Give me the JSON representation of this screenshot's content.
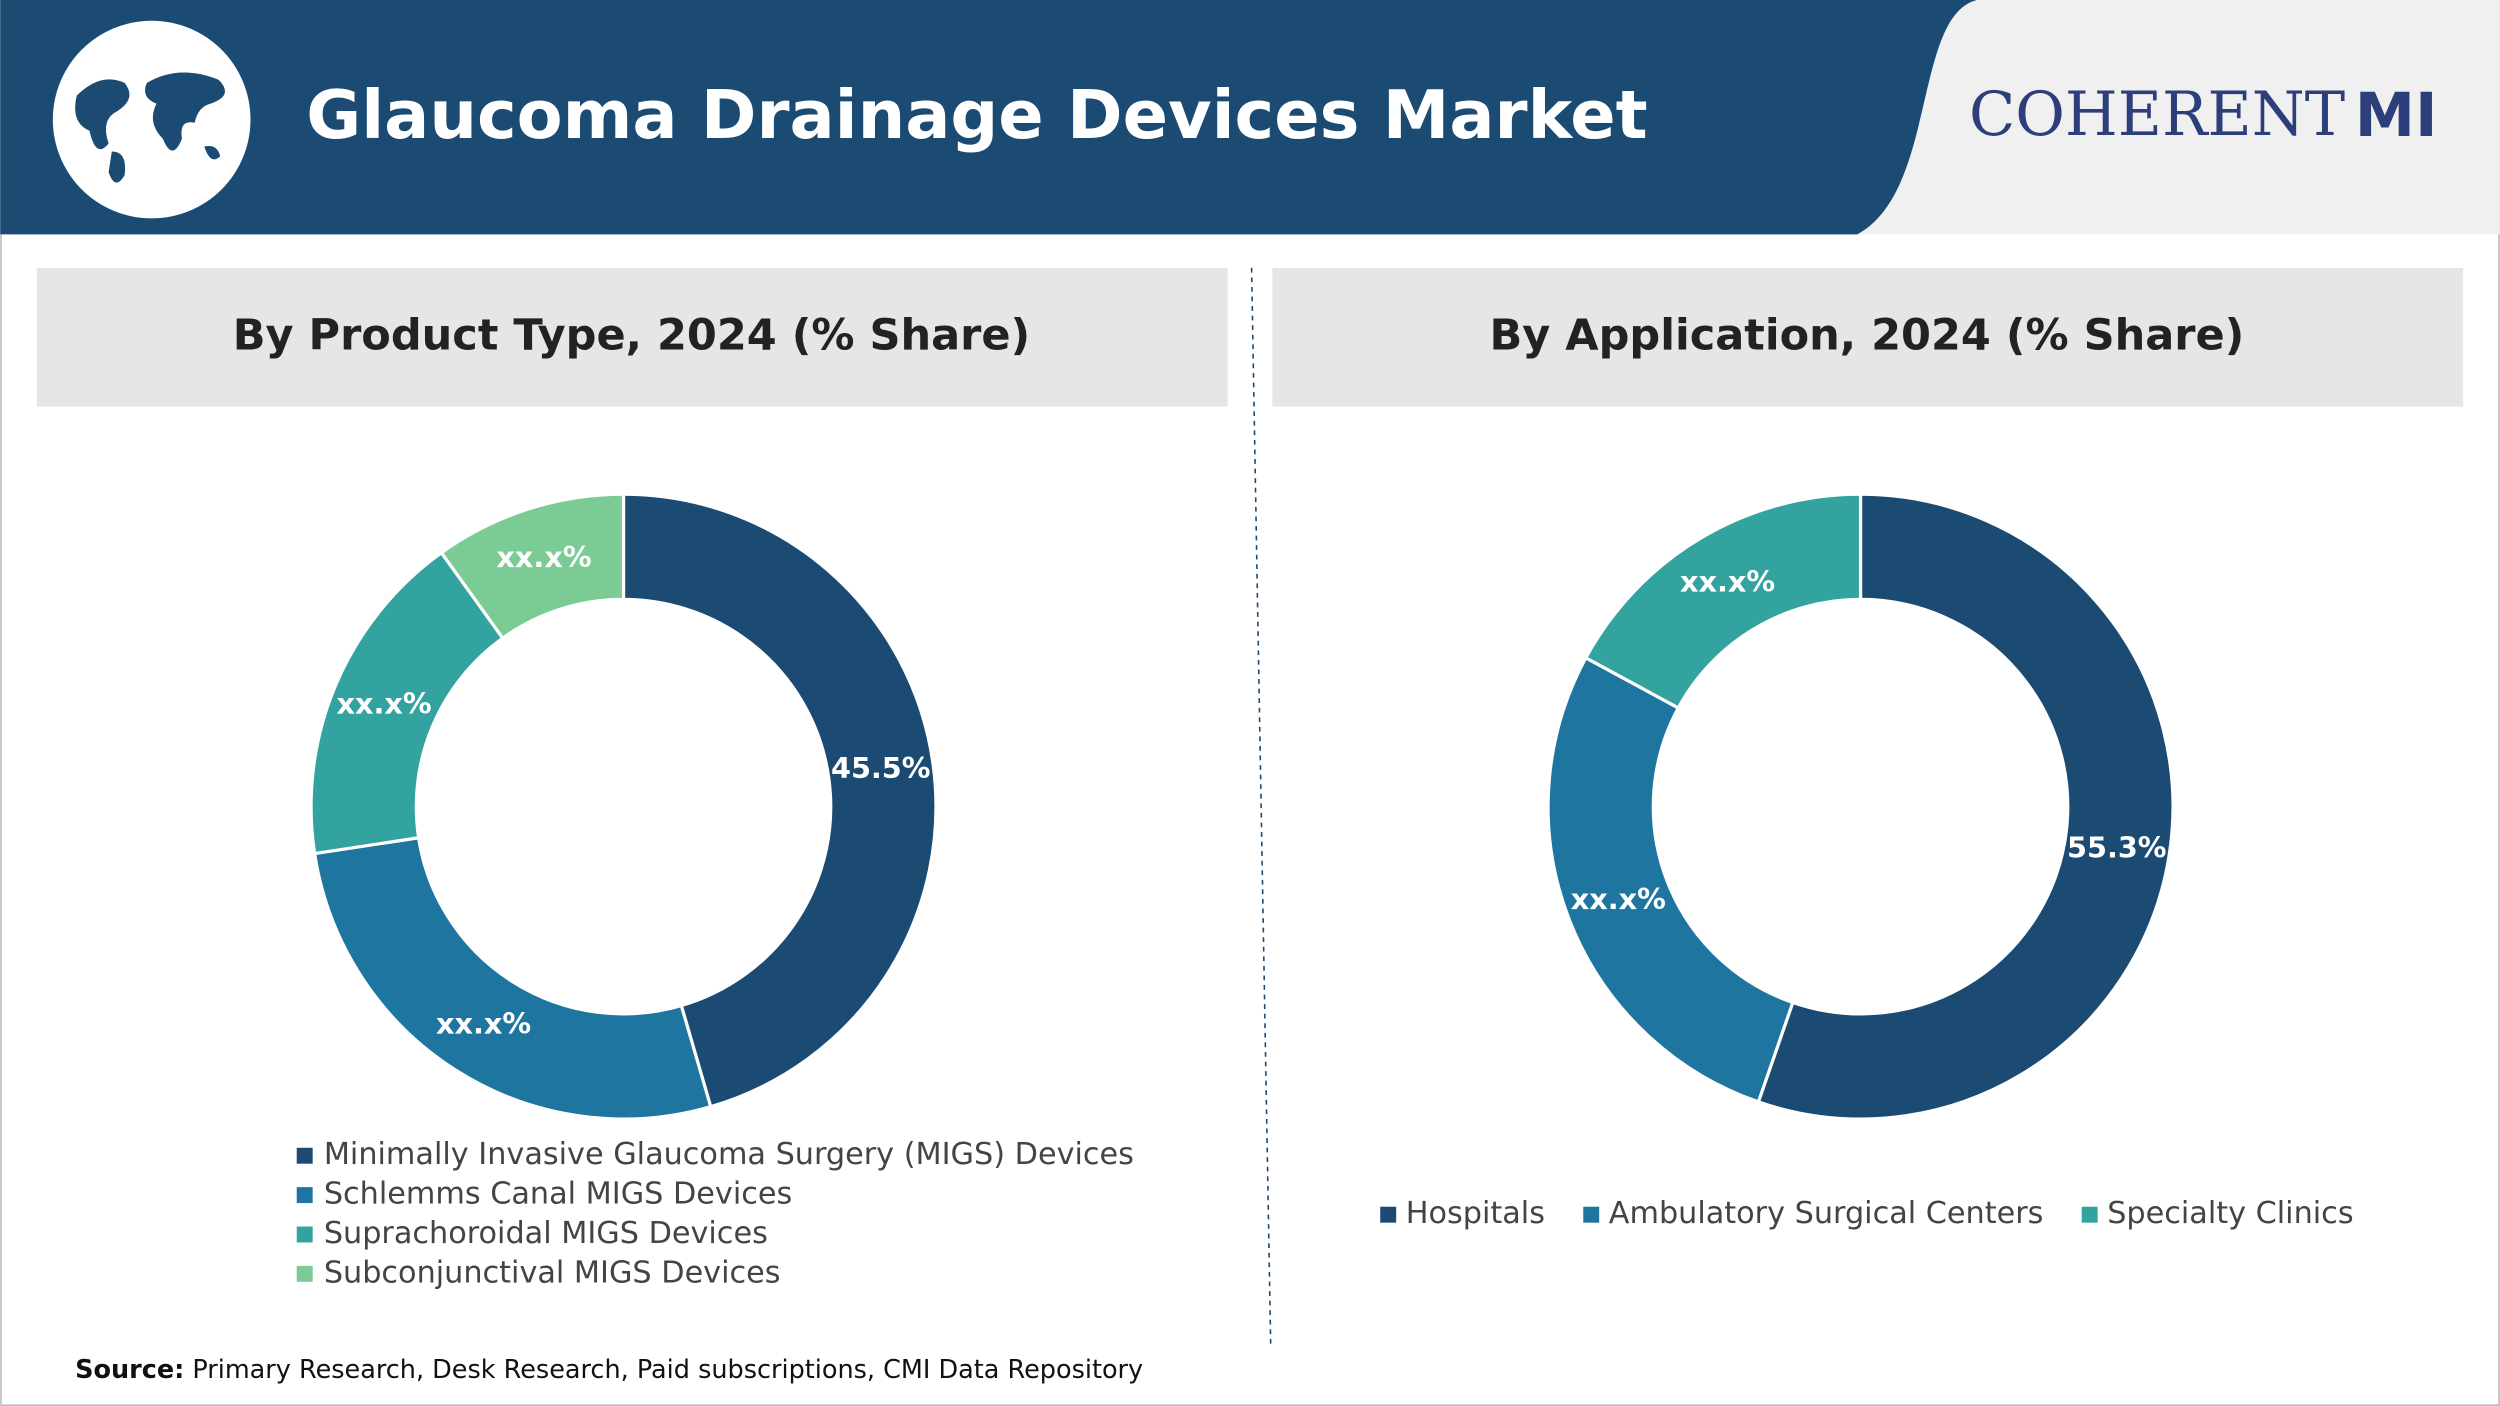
{
  "header": {
    "title": "Glaucoma Drainage Devices Market",
    "logo": {
      "text": "COHERENT",
      "suffix": "MI"
    }
  },
  "chart_data": [
    {
      "type": "donut",
      "title": "By Product Type, 2024 (% Share)",
      "categories": [
        "Minimally Invasive Glaucoma Surgery (MIGS) Devices",
        "Schlemms Canal MIGS Devices",
        "Suprachoroidal MIGS Devices",
        "Subconjunctival MIGS Devices"
      ],
      "values": [
        45.5,
        27.1,
        17.5,
        9.9
      ],
      "value_labels": [
        "45.5%",
        "xx.x%",
        "xx.x%",
        "xx.x%"
      ],
      "colors": [
        "#1b4a72",
        "#1e76a0",
        "#33a3a0",
        "#7acc94"
      ],
      "legend_layout": "vertical"
    },
    {
      "type": "donut",
      "title": "By Application, 2024 (% Share)",
      "categories": [
        "Hospitals",
        "Ambulatory Surgical Centers",
        "Specialty Clinics"
      ],
      "values": [
        55.3,
        27.6,
        17.1
      ],
      "value_labels": [
        "55.3%",
        "xx.x%",
        "xx.x%"
      ],
      "colors": [
        "#1b4a72",
        "#1e76a0",
        "#33a3a0"
      ],
      "legend_layout": "horizontal"
    }
  ],
  "source": {
    "label": "Source:",
    "text": "Primary Research, Desk Research, Paid subscriptions, CMI Data Repository"
  }
}
